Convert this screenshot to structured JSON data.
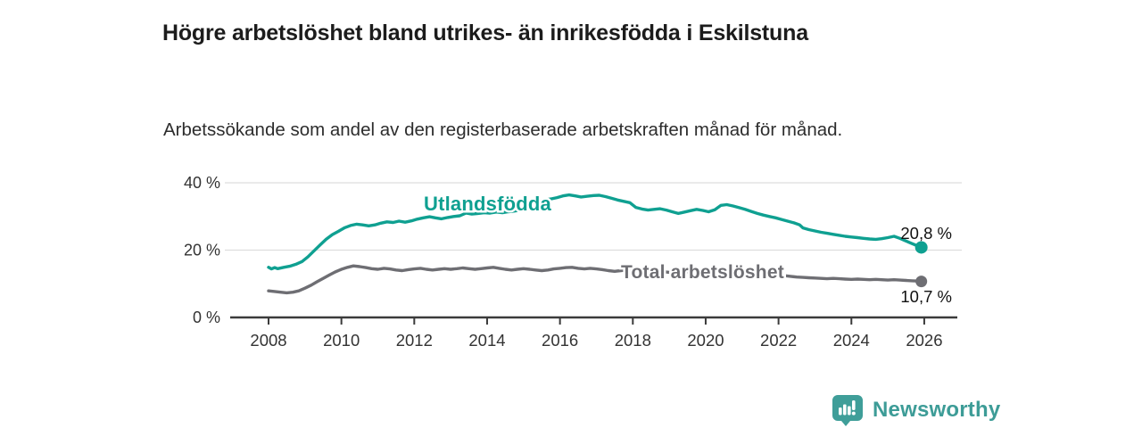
{
  "header": {
    "title": "Högre arbetslöshet bland utrikes- än inrikesfödda i Eskilstuna",
    "subtitle": "Arbetssökande som andel av den registerbaserade arbetskraften månad för månad."
  },
  "branding": {
    "logo_text": "Newsworthy",
    "logo_icon": "bar-chart-speech-bubble-icon",
    "brand_color": "#3f9e99"
  },
  "chart_data": {
    "type": "line",
    "title": "Högre arbetslöshet bland utrikes- än inrikesfödda i Eskilstuna",
    "subtitle": "Arbetssökande som andel av den registerbaserade arbetskraften månad för månad.",
    "unit": "%",
    "grid": "horizontal",
    "legend_position": "inline-labels",
    "x_axis": {
      "ticks": [
        2008,
        2010,
        2012,
        2014,
        2016,
        2018,
        2020,
        2022,
        2024,
        2026
      ],
      "range": [
        2006.9,
        2026.9
      ]
    },
    "y_axis": {
      "ticks": [
        {
          "v": 0,
          "label": "0 %"
        },
        {
          "v": 20,
          "label": "20 %"
        },
        {
          "v": 40,
          "label": "40 %"
        }
      ],
      "range": [
        0,
        42
      ]
    },
    "colors": {
      "line1": "#0fa091",
      "line2": "#6e6e73",
      "gridline": "#dedede",
      "axis": "#3b3b3b",
      "annotation": "#111111"
    },
    "series": [
      {
        "name": "Utlandsfödda",
        "color": "#0fa091",
        "last_value": 20.8,
        "last_value_label": "20,8 %",
        "points": [
          [
            2008.0,
            14.9
          ],
          [
            2008.08,
            14.4
          ],
          [
            2008.17,
            14.8
          ],
          [
            2008.25,
            14.5
          ],
          [
            2008.42,
            14.9
          ],
          [
            2008.58,
            15.2
          ],
          [
            2008.75,
            15.8
          ],
          [
            2008.92,
            16.6
          ],
          [
            2009.08,
            18.0
          ],
          [
            2009.25,
            19.8
          ],
          [
            2009.42,
            21.6
          ],
          [
            2009.58,
            23.2
          ],
          [
            2009.75,
            24.6
          ],
          [
            2009.92,
            25.6
          ],
          [
            2010.08,
            26.6
          ],
          [
            2010.25,
            27.3
          ],
          [
            2010.42,
            27.7
          ],
          [
            2010.58,
            27.5
          ],
          [
            2010.75,
            27.2
          ],
          [
            2010.92,
            27.5
          ],
          [
            2011.08,
            28.0
          ],
          [
            2011.25,
            28.4
          ],
          [
            2011.42,
            28.2
          ],
          [
            2011.58,
            28.6
          ],
          [
            2011.75,
            28.3
          ],
          [
            2011.92,
            28.7
          ],
          [
            2012.08,
            29.2
          ],
          [
            2012.25,
            29.6
          ],
          [
            2012.42,
            29.9
          ],
          [
            2012.58,
            29.6
          ],
          [
            2012.75,
            29.3
          ],
          [
            2012.92,
            29.7
          ],
          [
            2013.08,
            30.0
          ],
          [
            2013.25,
            30.2
          ],
          [
            2013.42,
            31.0
          ],
          [
            2013.58,
            30.7
          ],
          [
            2013.75,
            30.9
          ],
          [
            2013.92,
            31.1
          ],
          [
            2014.08,
            31.0
          ],
          [
            2014.25,
            31.3
          ],
          [
            2014.42,
            31.1
          ],
          [
            2014.58,
            31.4
          ],
          [
            2014.75,
            31.6
          ],
          [
            2014.92,
            31.9
          ],
          [
            2015.08,
            32.3
          ],
          [
            2015.25,
            32.8
          ],
          [
            2015.42,
            34.6
          ],
          [
            2015.58,
            34.9
          ],
          [
            2015.75,
            35.2
          ],
          [
            2015.92,
            35.6
          ],
          [
            2016.08,
            36.1
          ],
          [
            2016.25,
            36.4
          ],
          [
            2016.42,
            36.1
          ],
          [
            2016.58,
            35.8
          ],
          [
            2016.75,
            36.0
          ],
          [
            2016.92,
            36.2
          ],
          [
            2017.08,
            36.3
          ],
          [
            2017.25,
            35.9
          ],
          [
            2017.42,
            35.4
          ],
          [
            2017.58,
            34.9
          ],
          [
            2017.75,
            34.5
          ],
          [
            2017.92,
            34.1
          ],
          [
            2018.08,
            32.7
          ],
          [
            2018.25,
            32.2
          ],
          [
            2018.42,
            31.9
          ],
          [
            2018.58,
            32.1
          ],
          [
            2018.75,
            32.3
          ],
          [
            2018.92,
            31.9
          ],
          [
            2019.08,
            31.4
          ],
          [
            2019.25,
            30.9
          ],
          [
            2019.42,
            31.3
          ],
          [
            2019.58,
            31.7
          ],
          [
            2019.75,
            32.1
          ],
          [
            2019.92,
            31.8
          ],
          [
            2020.08,
            31.4
          ],
          [
            2020.25,
            32.0
          ],
          [
            2020.42,
            33.3
          ],
          [
            2020.58,
            33.5
          ],
          [
            2020.75,
            33.1
          ],
          [
            2020.92,
            32.6
          ],
          [
            2021.08,
            32.1
          ],
          [
            2021.25,
            31.5
          ],
          [
            2021.42,
            30.9
          ],
          [
            2021.58,
            30.4
          ],
          [
            2021.75,
            30.0
          ],
          [
            2021.92,
            29.6
          ],
          [
            2022.08,
            29.1
          ],
          [
            2022.25,
            28.6
          ],
          [
            2022.42,
            28.1
          ],
          [
            2022.58,
            27.5
          ],
          [
            2022.67,
            26.6
          ],
          [
            2022.83,
            26.1
          ],
          [
            2023.0,
            25.7
          ],
          [
            2023.17,
            25.3
          ],
          [
            2023.33,
            25.0
          ],
          [
            2023.5,
            24.7
          ],
          [
            2023.67,
            24.4
          ],
          [
            2023.83,
            24.1
          ],
          [
            2024.0,
            23.9
          ],
          [
            2024.17,
            23.7
          ],
          [
            2024.33,
            23.5
          ],
          [
            2024.5,
            23.3
          ],
          [
            2024.67,
            23.2
          ],
          [
            2024.83,
            23.4
          ],
          [
            2025.0,
            23.7
          ],
          [
            2025.17,
            24.1
          ],
          [
            2025.33,
            23.5
          ],
          [
            2025.5,
            22.7
          ],
          [
            2025.67,
            21.9
          ],
          [
            2025.83,
            21.2
          ],
          [
            2025.92,
            20.8
          ]
        ]
      },
      {
        "name": "Total arbetslöshet",
        "color": "#6e6e73",
        "last_value": 10.7,
        "last_value_label": "10,7 %",
        "points": [
          [
            2008.0,
            7.9
          ],
          [
            2008.17,
            7.7
          ],
          [
            2008.33,
            7.5
          ],
          [
            2008.5,
            7.3
          ],
          [
            2008.67,
            7.5
          ],
          [
            2008.83,
            7.9
          ],
          [
            2009.0,
            8.7
          ],
          [
            2009.17,
            9.6
          ],
          [
            2009.33,
            10.6
          ],
          [
            2009.5,
            11.6
          ],
          [
            2009.67,
            12.6
          ],
          [
            2009.83,
            13.5
          ],
          [
            2010.0,
            14.3
          ],
          [
            2010.17,
            14.9
          ],
          [
            2010.33,
            15.3
          ],
          [
            2010.5,
            15.1
          ],
          [
            2010.67,
            14.8
          ],
          [
            2010.83,
            14.5
          ],
          [
            2011.0,
            14.3
          ],
          [
            2011.17,
            14.6
          ],
          [
            2011.33,
            14.4
          ],
          [
            2011.5,
            14.1
          ],
          [
            2011.67,
            13.9
          ],
          [
            2011.83,
            14.2
          ],
          [
            2012.0,
            14.4
          ],
          [
            2012.17,
            14.6
          ],
          [
            2012.33,
            14.3
          ],
          [
            2012.5,
            14.1
          ],
          [
            2012.67,
            14.3
          ],
          [
            2012.83,
            14.5
          ],
          [
            2013.0,
            14.3
          ],
          [
            2013.17,
            14.5
          ],
          [
            2013.33,
            14.7
          ],
          [
            2013.5,
            14.5
          ],
          [
            2013.67,
            14.3
          ],
          [
            2013.83,
            14.5
          ],
          [
            2014.0,
            14.7
          ],
          [
            2014.17,
            14.9
          ],
          [
            2014.33,
            14.6
          ],
          [
            2014.5,
            14.3
          ],
          [
            2014.67,
            14.1
          ],
          [
            2014.83,
            14.3
          ],
          [
            2015.0,
            14.5
          ],
          [
            2015.17,
            14.3
          ],
          [
            2015.33,
            14.1
          ],
          [
            2015.5,
            13.9
          ],
          [
            2015.67,
            14.1
          ],
          [
            2015.83,
            14.4
          ],
          [
            2016.0,
            14.6
          ],
          [
            2016.17,
            14.8
          ],
          [
            2016.33,
            14.9
          ],
          [
            2016.5,
            14.6
          ],
          [
            2016.67,
            14.4
          ],
          [
            2016.83,
            14.6
          ],
          [
            2017.0,
            14.4
          ],
          [
            2017.17,
            14.2
          ],
          [
            2017.33,
            13.9
          ],
          [
            2017.5,
            13.7
          ],
          [
            2017.67,
            13.9
          ],
          [
            2017.83,
            14.1
          ],
          [
            2018.0,
            13.9
          ],
          [
            2018.17,
            13.6
          ],
          [
            2018.33,
            13.4
          ],
          [
            2018.5,
            13.6
          ],
          [
            2018.67,
            13.8
          ],
          [
            2018.83,
            13.6
          ],
          [
            2019.0,
            13.4
          ],
          [
            2019.17,
            13.2
          ],
          [
            2019.33,
            13.4
          ],
          [
            2019.5,
            13.6
          ],
          [
            2019.67,
            13.8
          ],
          [
            2019.83,
            13.6
          ],
          [
            2020.0,
            13.5
          ],
          [
            2020.17,
            13.7
          ],
          [
            2020.33,
            14.1
          ],
          [
            2020.5,
            14.4
          ],
          [
            2020.67,
            14.2
          ],
          [
            2020.83,
            14.0
          ],
          [
            2021.0,
            13.8
          ],
          [
            2021.17,
            13.6
          ],
          [
            2021.33,
            13.4
          ],
          [
            2021.5,
            13.2
          ],
          [
            2021.67,
            13.0
          ],
          [
            2021.83,
            12.8
          ],
          [
            2022.0,
            12.6
          ],
          [
            2022.17,
            12.4
          ],
          [
            2022.33,
            12.2
          ],
          [
            2022.5,
            12.0
          ],
          [
            2022.67,
            11.9
          ],
          [
            2022.83,
            11.8
          ],
          [
            2023.0,
            11.7
          ],
          [
            2023.17,
            11.6
          ],
          [
            2023.33,
            11.5
          ],
          [
            2023.5,
            11.6
          ],
          [
            2023.67,
            11.5
          ],
          [
            2023.83,
            11.4
          ],
          [
            2024.0,
            11.3
          ],
          [
            2024.17,
            11.4
          ],
          [
            2024.33,
            11.3
          ],
          [
            2024.5,
            11.2
          ],
          [
            2024.67,
            11.3
          ],
          [
            2024.83,
            11.2
          ],
          [
            2025.0,
            11.1
          ],
          [
            2025.17,
            11.2
          ],
          [
            2025.33,
            11.1
          ],
          [
            2025.5,
            11.0
          ],
          [
            2025.67,
            10.9
          ],
          [
            2025.83,
            10.8
          ],
          [
            2025.92,
            10.7
          ]
        ]
      }
    ]
  }
}
